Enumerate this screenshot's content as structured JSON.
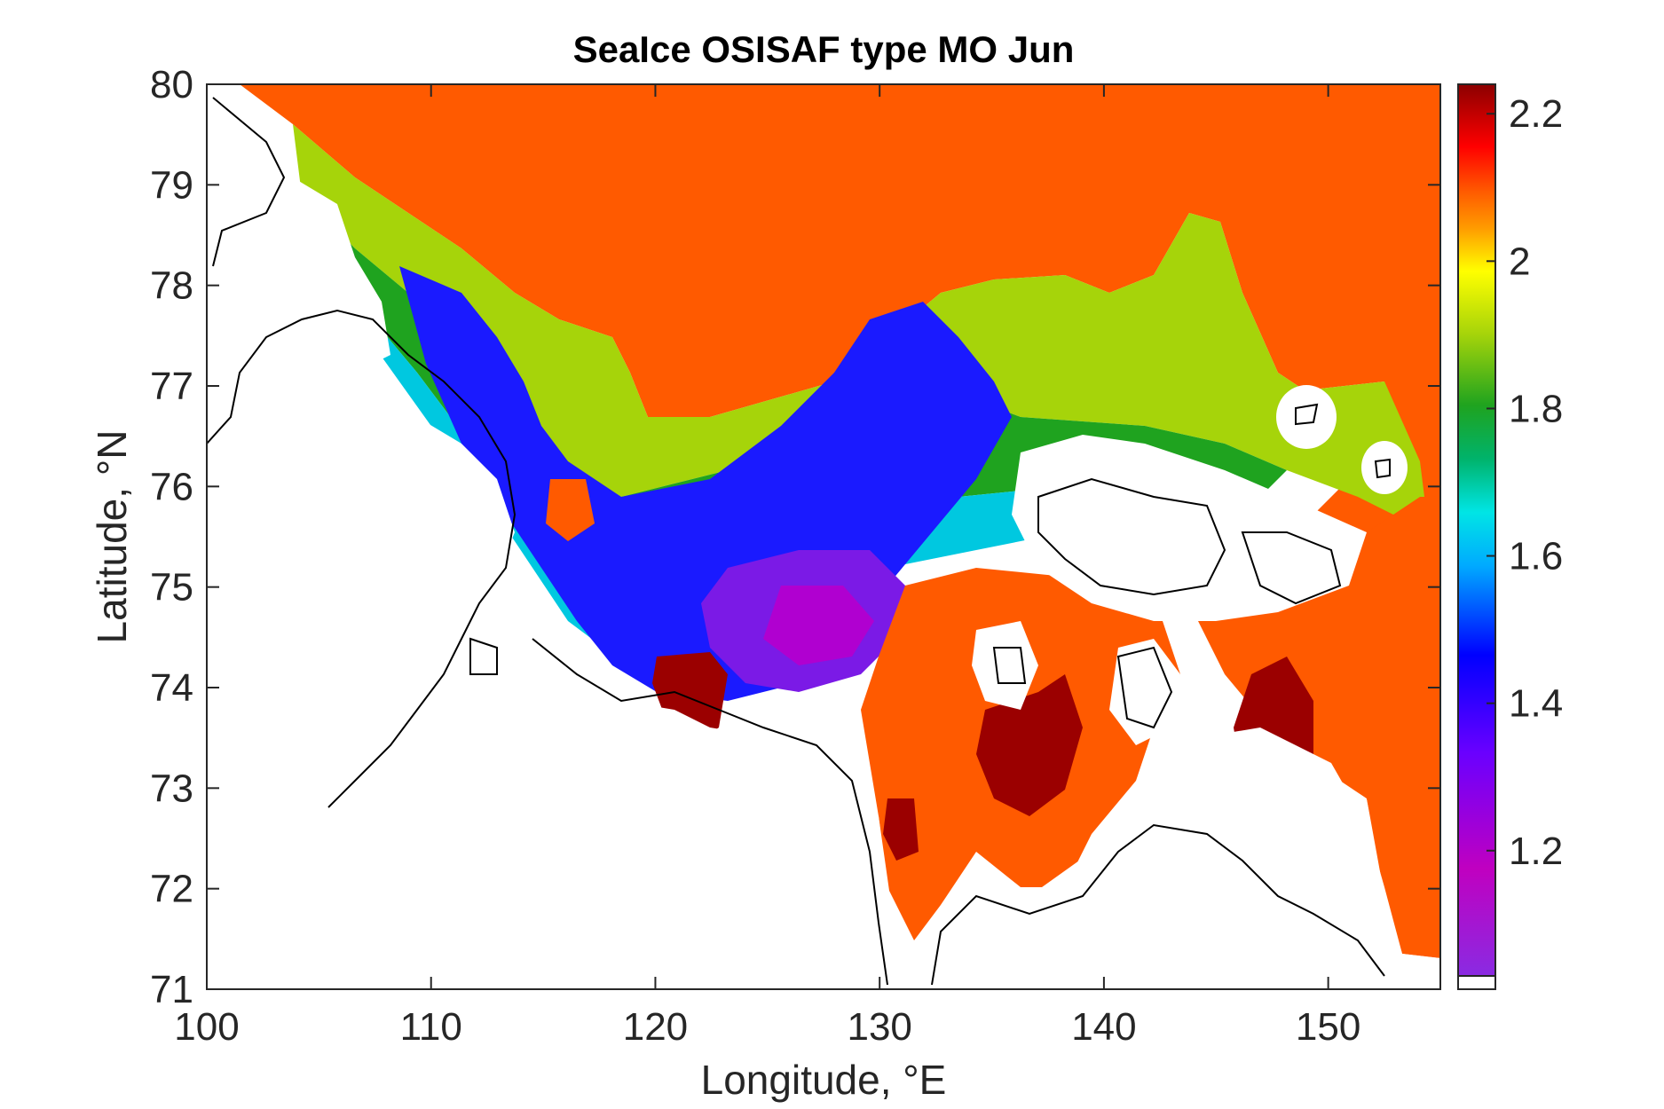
{
  "title": "SeaIce OSISAF type MO Jun",
  "xlabel": "Longitude, °E",
  "ylabel": "Latitude, °N",
  "chart_data": {
    "type": "heatmap",
    "title": "SeaIce OSISAF type MO Jun",
    "xlabel": "Longitude, °E",
    "ylabel": "Latitude, °N",
    "xlim": [
      100,
      155
    ],
    "ylim": [
      71,
      80
    ],
    "xticks": [
      "100",
      "110",
      "120",
      "130",
      "140",
      "150"
    ],
    "yticks": [
      "71",
      "72",
      "73",
      "74",
      "75",
      "76",
      "77",
      "78",
      "79",
      "80"
    ],
    "colorbar": {
      "range": [
        1.03,
        2.24
      ],
      "ticks": [
        "1.2",
        "1.4",
        "1.6",
        "1.8",
        "2",
        "2.2"
      ],
      "colormap": [
        "#8a2be2",
        "#c000c0",
        "#6a00ff",
        "#0000ff",
        "#00aaff",
        "#00e5e5",
        "#00b36b",
        "#1fa31f",
        "#a6d40a",
        "#ffff00",
        "#ff9900",
        "#ff5a00",
        "#ff0000",
        "#8b0000"
      ]
    },
    "dominant_values": {
      "open_ocean_north": 2.0,
      "east_siberian_shelf_hotspots": 2.2,
      "laptev_central_minimum": 1.15
    }
  }
}
